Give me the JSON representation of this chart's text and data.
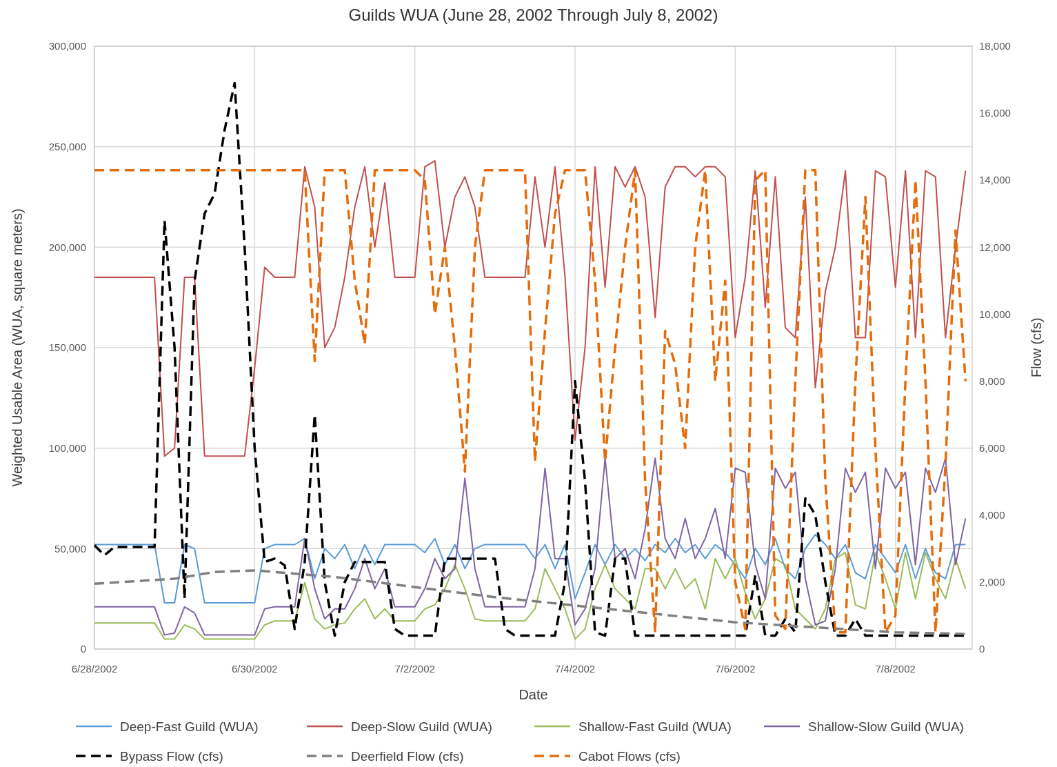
{
  "chart_data": {
    "type": "line",
    "title": "Guilds WUA (June 28, 2002 Through July 8, 2002)",
    "xlabel": "Date",
    "ylabel": "Weighted Usable Area (WUA, square meters)",
    "y2label": "Flow (cfs)",
    "x": [
      "2002-06-28T00:00",
      "2002-06-28T03:00",
      "2002-06-28T06:00",
      "2002-06-28T09:00",
      "2002-06-28T12:00",
      "2002-06-28T15:00",
      "2002-06-28T18:00",
      "2002-06-28T21:00",
      "2002-06-29T00:00",
      "2002-06-29T03:00",
      "2002-06-29T06:00",
      "2002-06-29T09:00",
      "2002-06-29T12:00",
      "2002-06-29T15:00",
      "2002-06-29T18:00",
      "2002-06-29T21:00",
      "2002-06-30T00:00",
      "2002-06-30T03:00",
      "2002-06-30T06:00",
      "2002-06-30T09:00",
      "2002-06-30T12:00",
      "2002-06-30T15:00",
      "2002-06-30T18:00",
      "2002-06-30T21:00",
      "2002-07-01T00:00",
      "2002-07-01T03:00",
      "2002-07-01T06:00",
      "2002-07-01T09:00",
      "2002-07-01T12:00",
      "2002-07-01T15:00",
      "2002-07-01T18:00",
      "2002-07-01T21:00",
      "2002-07-02T00:00",
      "2002-07-02T03:00",
      "2002-07-02T06:00",
      "2002-07-02T09:00",
      "2002-07-02T12:00",
      "2002-07-02T15:00",
      "2002-07-02T18:00",
      "2002-07-02T21:00",
      "2002-07-03T00:00",
      "2002-07-03T03:00",
      "2002-07-03T06:00",
      "2002-07-03T09:00",
      "2002-07-03T12:00",
      "2002-07-03T15:00",
      "2002-07-03T18:00",
      "2002-07-03T21:00",
      "2002-07-04T00:00",
      "2002-07-04T03:00",
      "2002-07-04T06:00",
      "2002-07-04T09:00",
      "2002-07-04T12:00",
      "2002-07-04T15:00",
      "2002-07-04T18:00",
      "2002-07-04T21:00",
      "2002-07-05T00:00",
      "2002-07-05T03:00",
      "2002-07-05T06:00",
      "2002-07-05T09:00",
      "2002-07-05T12:00",
      "2002-07-05T15:00",
      "2002-07-05T18:00",
      "2002-07-05T21:00",
      "2002-07-06T00:00",
      "2002-07-06T03:00",
      "2002-07-06T06:00",
      "2002-07-06T09:00",
      "2002-07-06T12:00",
      "2002-07-06T15:00",
      "2002-07-06T18:00",
      "2002-07-06T21:00",
      "2002-07-07T00:00",
      "2002-07-07T03:00",
      "2002-07-07T06:00",
      "2002-07-07T09:00",
      "2002-07-07T12:00",
      "2002-07-07T15:00",
      "2002-07-07T18:00",
      "2002-07-07T21:00",
      "2002-07-08T00:00",
      "2002-07-08T03:00",
      "2002-07-08T06:00",
      "2002-07-08T09:00",
      "2002-07-08T12:00",
      "2002-07-08T15:00",
      "2002-07-08T18:00",
      "2002-07-08T21:00"
    ],
    "xlim": [
      "2002-06-28T00:00",
      "2002-07-08T23:00"
    ],
    "xticks": [
      {
        "value": "2002-06-28",
        "label": "6/28/2002"
      },
      {
        "value": "2002-06-30",
        "label": "6/30/2002"
      },
      {
        "value": "2002-07-02",
        "label": "7/2/2002"
      },
      {
        "value": "2002-07-04",
        "label": "7/4/2002"
      },
      {
        "value": "2002-07-06",
        "label": "7/6/2002"
      },
      {
        "value": "2002-07-08",
        "label": "7/8/2002"
      }
    ],
    "ylim": [
      0,
      300000
    ],
    "yticks": [
      0,
      {
        "value": 50000,
        "label": "50,000"
      },
      {
        "value": 100000,
        "label": "100,000"
      },
      {
        "value": 150000,
        "label": "150,000"
      },
      {
        "value": 200000,
        "label": "200,000"
      },
      {
        "value": 250000,
        "label": "250,000"
      },
      {
        "value": 300000,
        "label": "300,000"
      }
    ],
    "y2lim": [
      0,
      18000
    ],
    "y2ticks": [
      0,
      {
        "value": 2000,
        "label": "2,000"
      },
      {
        "value": 4000,
        "label": "4,000"
      },
      {
        "value": 6000,
        "label": "6,000"
      },
      {
        "value": 8000,
        "label": "8,000"
      },
      {
        "value": 10000,
        "label": "10,000"
      },
      {
        "value": 12000,
        "label": "12,000"
      },
      {
        "value": 14000,
        "label": "14,000"
      },
      {
        "value": 16000,
        "label": "16,000"
      },
      {
        "value": 18000,
        "label": "18,000"
      }
    ],
    "grid": true,
    "legend": "bottom",
    "marker": "none",
    "series": [
      {
        "name": "Deep-Fast Guild (WUA)",
        "color": "#5b9bd5",
        "line_style": "solid",
        "values": [
          52000,
          52000,
          52000,
          52000,
          52000,
          52000,
          52000,
          23000,
          23000,
          52000,
          50000,
          23000,
          23000,
          23000,
          23000,
          23000,
          23000,
          50000,
          52000,
          52000,
          52000,
          55000,
          35000,
          50000,
          45000,
          52000,
          40000,
          52000,
          42000,
          52000,
          52000,
          52000,
          52000,
          48000,
          55000,
          42000,
          52000,
          40000,
          50000,
          52000,
          52000,
          52000,
          52000,
          52000,
          45000,
          52000,
          40000,
          52000,
          25000,
          38000,
          52000,
          42000,
          52000,
          45000,
          50000,
          44000,
          52000,
          48000,
          55000,
          48000,
          52000,
          45000,
          52000,
          48000,
          42000,
          35000,
          50000,
          42000,
          55000,
          40000,
          35000,
          50000,
          57000,
          52000,
          45000,
          52000,
          38000,
          35000,
          52000,
          45000,
          38000,
          52000,
          35000,
          50000,
          38000,
          35000,
          52000,
          52000
        ]
      },
      {
        "name": "Deep-Slow Guild (WUA)",
        "color": "#c0504d",
        "line_style": "solid",
        "values": [
          185000,
          185000,
          185000,
          185000,
          185000,
          185000,
          185000,
          96000,
          100000,
          185000,
          185000,
          96000,
          96000,
          96000,
          96000,
          96000,
          140000,
          190000,
          185000,
          185000,
          185000,
          240000,
          220000,
          150000,
          160000,
          185000,
          220000,
          240000,
          200000,
          232000,
          185000,
          185000,
          185000,
          240000,
          243000,
          200000,
          225000,
          235000,
          220000,
          185000,
          185000,
          185000,
          185000,
          185000,
          235000,
          200000,
          240000,
          185000,
          104000,
          150000,
          240000,
          180000,
          240000,
          230000,
          240000,
          225000,
          165000,
          230000,
          240000,
          240000,
          235000,
          240000,
          240000,
          235000,
          155000,
          185000,
          238000,
          170000,
          235000,
          160000,
          155000,
          225000,
          130000,
          178000,
          200000,
          238000,
          155000,
          155000,
          238000,
          235000,
          180000,
          238000,
          155000,
          238000,
          235000,
          155000,
          200000,
          238000
        ]
      },
      {
        "name": "Shallow-Fast Guild (WUA)",
        "color": "#9bbb59",
        "line_style": "solid",
        "values": [
          13000,
          13000,
          13000,
          13000,
          13000,
          13000,
          13000,
          5000,
          5000,
          12000,
          10000,
          5000,
          5000,
          5000,
          5000,
          5000,
          5000,
          12000,
          14000,
          14000,
          14000,
          33000,
          15000,
          10000,
          12000,
          13000,
          20000,
          25000,
          15000,
          20000,
          14000,
          14000,
          14000,
          20000,
          22000,
          30000,
          42000,
          30000,
          15000,
          14000,
          14000,
          14000,
          14000,
          14000,
          20000,
          40000,
          30000,
          20000,
          5000,
          10000,
          30000,
          42000,
          30000,
          25000,
          20000,
          40000,
          40000,
          30000,
          40000,
          30000,
          35000,
          20000,
          45000,
          35000,
          45000,
          28000,
          15000,
          25000,
          45000,
          42000,
          20000,
          15000,
          10000,
          20000,
          45000,
          48000,
          22000,
          20000,
          48000,
          35000,
          20000,
          48000,
          25000,
          48000,
          35000,
          25000,
          45000,
          30000
        ]
      },
      {
        "name": "Shallow-Slow Guild (WUA)",
        "color": "#8064a2",
        "line_style": "solid",
        "values": [
          21000,
          21000,
          21000,
          21000,
          21000,
          21000,
          21000,
          7000,
          8000,
          21000,
          18000,
          7000,
          7000,
          7000,
          7000,
          7000,
          7000,
          20000,
          21000,
          21000,
          21000,
          55000,
          30000,
          15000,
          20000,
          20000,
          30000,
          45000,
          30000,
          40000,
          21000,
          21000,
          21000,
          30000,
          45000,
          35000,
          40000,
          85000,
          40000,
          21000,
          21000,
          21000,
          21000,
          21000,
          40000,
          90000,
          45000,
          45000,
          12000,
          20000,
          40000,
          95000,
          45000,
          50000,
          35000,
          60000,
          95000,
          55000,
          45000,
          65000,
          45000,
          55000,
          70000,
          45000,
          90000,
          88000,
          42000,
          25000,
          90000,
          80000,
          88000,
          35000,
          12000,
          14000,
          40000,
          90000,
          78000,
          88000,
          40000,
          90000,
          80000,
          88000,
          42000,
          90000,
          78000,
          95000,
          42000,
          65000
        ]
      },
      {
        "name": "Bypass Flow (cfs)",
        "color": "#000000",
        "line_style": "dashed",
        "axis": "y2",
        "values": [
          3100,
          2800,
          3050,
          3050,
          3050,
          3050,
          3050,
          12800,
          9000,
          1500,
          11000,
          13000,
          13600,
          15500,
          16900,
          12000,
          6000,
          2600,
          2700,
          2500,
          600,
          2600,
          7000,
          2000,
          400,
          2000,
          2600,
          2600,
          2600,
          2600,
          600,
          400,
          400,
          400,
          400,
          2700,
          2700,
          2700,
          2700,
          2700,
          2700,
          600,
          400,
          400,
          400,
          400,
          400,
          2000,
          8000,
          5000,
          500,
          400,
          2700,
          2700,
          400,
          400,
          400,
          400,
          400,
          400,
          400,
          400,
          400,
          400,
          400,
          400,
          2200,
          400,
          400,
          900,
          500,
          4500,
          4000,
          2000,
          400,
          400,
          900,
          400,
          400,
          400,
          400,
          400,
          400,
          400,
          400,
          400,
          400,
          400
        ]
      },
      {
        "name": "Deerfield Flow (cfs)",
        "color": "#808080",
        "line_style": "dashed",
        "axis": "y2",
        "x": [
          "2002-06-28T00:00",
          "2002-06-29T00:00",
          "2002-06-29T12:00",
          "2002-06-30T00:00",
          "2002-06-30T12:00",
          "2002-07-01T00:00",
          "2002-07-02T00:00",
          "2002-07-03T00:00",
          "2002-07-04T00:00",
          "2002-07-05T00:00",
          "2002-07-06T00:00",
          "2002-07-07T00:00",
          "2002-07-08T00:00",
          "2002-07-08T21:00"
        ],
        "values": [
          1950,
          2100,
          2300,
          2350,
          2250,
          2150,
          1850,
          1550,
          1300,
          1050,
          800,
          650,
          500,
          450
        ]
      },
      {
        "name": "Cabot Flows (cfs)",
        "color": "#e46c0a",
        "line_style": "dashed",
        "axis": "y2",
        "values": [
          14300,
          14300,
          14300,
          14300,
          14300,
          14300,
          14300,
          14300,
          14300,
          14300,
          14300,
          14300,
          14300,
          14300,
          14300,
          14300,
          14300,
          14300,
          14300,
          14300,
          14300,
          14300,
          8600,
          14300,
          14300,
          14300,
          11000,
          9100,
          14300,
          14300,
          14300,
          14300,
          14300,
          14000,
          10000,
          12000,
          9000,
          5300,
          12000,
          14300,
          14300,
          14300,
          14300,
          14300,
          5600,
          9500,
          13000,
          14300,
          14300,
          14300,
          11000,
          5600,
          9000,
          12000,
          14300,
          5000,
          500,
          9500,
          8500,
          6000,
          12000,
          14300,
          8000,
          11000,
          2000,
          600,
          14000,
          14300,
          1000,
          600,
          8000,
          14300,
          14300,
          5000,
          500,
          500,
          8000,
          13500,
          6000,
          500,
          1000,
          8000,
          14000,
          8000,
          500,
          5500,
          12500,
          8000
        ]
      }
    ]
  }
}
